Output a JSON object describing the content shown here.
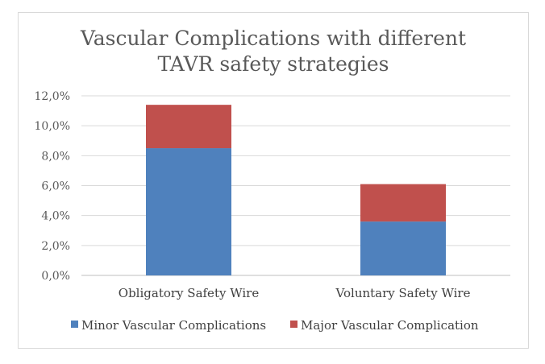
{
  "chart_data": {
    "type": "bar",
    "stacked": true,
    "title_lines": [
      "Vascular Complications with different",
      "TAVR safety strategies"
    ],
    "categories": [
      "Obligatory Safety Wire",
      "Voluntary Safety Wire"
    ],
    "series": [
      {
        "name": "Minor Vascular Complications",
        "color": "#4f81bd",
        "values": [
          8.5,
          3.6
        ]
      },
      {
        "name": "Major Vascular Complication",
        "color": "#c0504d",
        "values": [
          2.9,
          2.5
        ]
      }
    ],
    "y_ticks": [
      "0,0%",
      "2,0%",
      "4,0%",
      "6,0%",
      "8,0%",
      "10,0%",
      "12,0%"
    ],
    "ylim": [
      0,
      12
    ],
    "grid": true,
    "legend_position": "bottom"
  }
}
